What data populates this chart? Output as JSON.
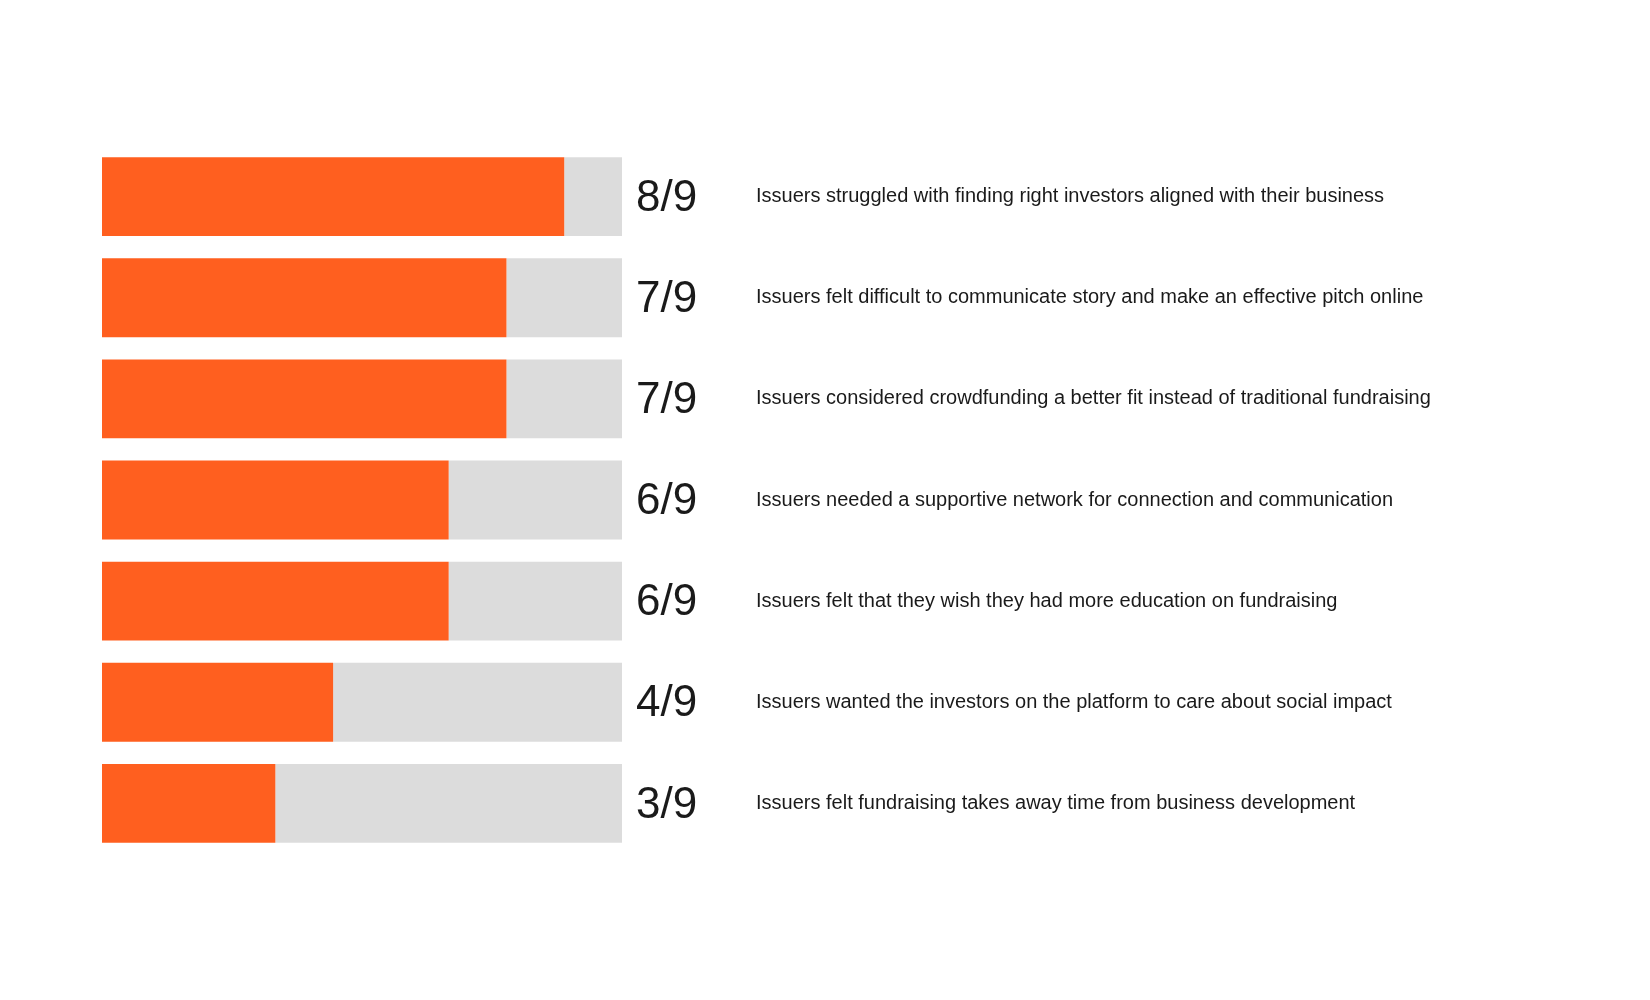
{
  "chart_data": {
    "type": "bar",
    "orientation": "horizontal",
    "stacked": true,
    "tick_labels": "y",
    "xlim": [
      0,
      9
    ],
    "categories": [
      "Issuers struggled with finding right investors aligned with their business",
      "Issuers felt difficult to communicate story and make an effective pitch online",
      "Issuers considered crowdfunding a better fit instead of traditional fundraising",
      "Issuers needed a supportive network for connection and communication",
      "Issuers felt that they wish they had more education on fundraising",
      "Issuers wanted the investors on the platform to care about social impact",
      "Issuers felt fundraising takes away time from business development"
    ],
    "series": [
      {
        "color": "#ff5f1f",
        "values": [
          8,
          7,
          7,
          6,
          6,
          4,
          3
        ],
        "value_labels": [
          "8/9",
          "7/9",
          "7/9",
          "6/9",
          "6/9",
          "4/9",
          "3/9"
        ]
      },
      {
        "color": "#dcdcdc",
        "values": [
          1,
          2,
          2,
          3,
          3,
          5,
          6
        ]
      }
    ]
  }
}
